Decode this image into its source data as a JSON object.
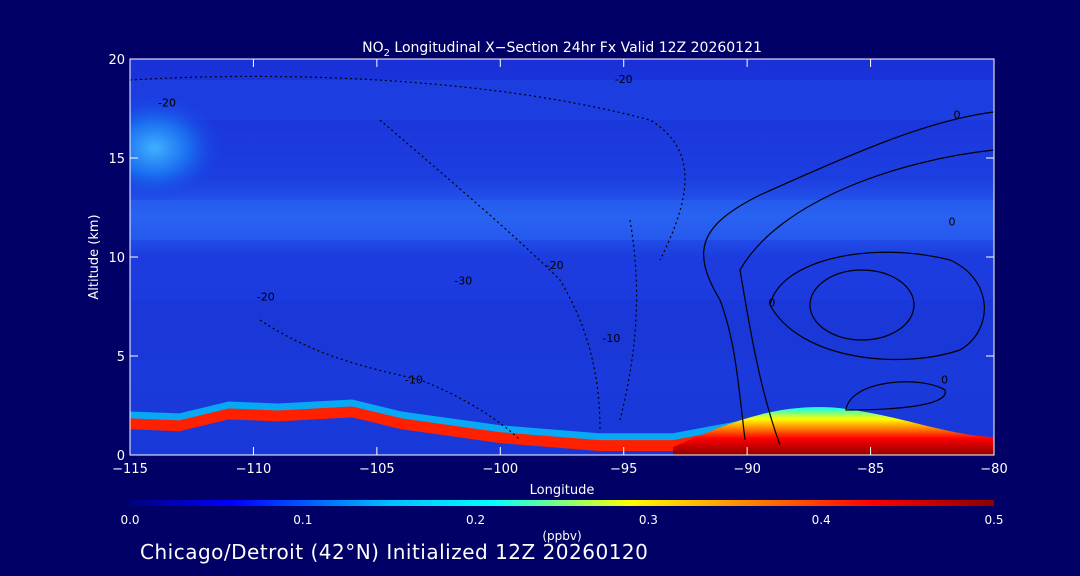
{
  "chart_data": {
    "type": "heatmap",
    "title_parts": {
      "pre": "NO",
      "sub": "2",
      "post": " Longitudinal X−Section 24hr  Fx Valid 12Z 20260121"
    },
    "xlabel": "Longitude",
    "ylabel": "Altitude (km)",
    "xlim": [
      -115,
      -80
    ],
    "ylim": [
      0,
      20
    ],
    "xticks": [
      -115,
      -110,
      -105,
      -100,
      -95,
      -90,
      -85,
      -80
    ],
    "xtick_labels": [
      "−115",
      "−110",
      "−105",
      "−100",
      "−95",
      "−90",
      "−85",
      "−80"
    ],
    "yticks": [
      0,
      5,
      10,
      15,
      20
    ],
    "ytick_labels": [
      "0",
      "5",
      "10",
      "15",
      "20"
    ],
    "colorbar": {
      "label": "(ppbv)",
      "range": [
        0.0,
        0.5
      ],
      "ticks": [
        0.0,
        0.1,
        0.2,
        0.3,
        0.4,
        0.5
      ],
      "tick_labels": [
        "0.0",
        "0.1",
        "0.2",
        "0.3",
        "0.4",
        "0.5"
      ],
      "colormap": [
        "#000080",
        "#0000ff",
        "#00bfff",
        "#00ffff",
        "#ffff00",
        "#ff8000",
        "#ff0000",
        "#8b0000"
      ]
    },
    "terrain_km": [
      [
        -115,
        1.6
      ],
      [
        -113,
        1.5
      ],
      [
        -111,
        2.1
      ],
      [
        -109,
        2.0
      ],
      [
        -106,
        2.2
      ],
      [
        -104,
        1.6
      ],
      [
        -100,
        0.9
      ],
      [
        -96,
        0.5
      ],
      [
        -93,
        0.5
      ],
      [
        -90,
        1.2
      ],
      [
        -88,
        0.6
      ],
      [
        -85,
        0.4
      ],
      [
        -80,
        0.3
      ]
    ],
    "high_region": {
      "x": [
        -92,
        -80
      ],
      "value": 0.5
    },
    "upper_plume": {
      "lon": -114,
      "alt_km": 15.5,
      "value": 0.12
    },
    "contour_labels": [
      {
        "text": "-20",
        "lon": -113.5,
        "alt": 17.6
      },
      {
        "text": "-20",
        "lon": -109.5,
        "alt": 7.8
      },
      {
        "text": "-30",
        "lon": -101.5,
        "alt": 8.6
      },
      {
        "text": "-20",
        "lon": -97.8,
        "alt": 9.4
      },
      {
        "text": "-10",
        "lon": -95.5,
        "alt": 5.7
      },
      {
        "text": "-10",
        "lon": -103.5,
        "alt": 3.6
      },
      {
        "text": "-20",
        "lon": -95,
        "alt": 18.8
      },
      {
        "text": "0",
        "lon": -89,
        "alt": 7.5
      },
      {
        "text": "0",
        "lon": -81.5,
        "alt": 17.0
      },
      {
        "text": "0",
        "lon": -81.7,
        "alt": 11.6
      },
      {
        "text": "0",
        "lon": -82,
        "alt": 3.6
      }
    ]
  },
  "footer": "Chicago/Detroit (42°N) Initialized 12Z 20260120"
}
